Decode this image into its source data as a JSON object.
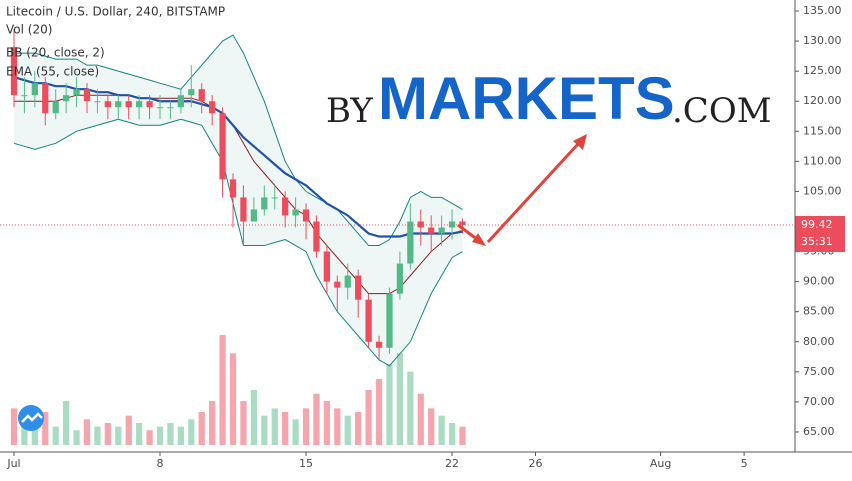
{
  "chart_data": {
    "type": "candlestick",
    "title": "Litecoin / U.S. Dollar, 240, BITSTAMP",
    "indicators": [
      "Vol (20)",
      "BB (20, close, 2)",
      "EMA (55, close)"
    ],
    "x": [
      0,
      0.5,
      1,
      1.5,
      2,
      2.5,
      3,
      3.5,
      4,
      4.5,
      5,
      5.5,
      6,
      6.5,
      7,
      7.5,
      8,
      8.5,
      9,
      9.5,
      10,
      10.5,
      11,
      11.5,
      12,
      12.5,
      13,
      13.5,
      14,
      14.5,
      15,
      15.5,
      16,
      16.5,
      17,
      17.5,
      18,
      18.5,
      19,
      19.5,
      20,
      20.5,
      21,
      21.5
    ],
    "open": [
      129,
      121,
      121,
      123,
      118,
      120,
      121,
      122,
      120,
      120,
      119,
      120,
      119,
      120,
      119,
      119,
      119,
      121,
      122,
      120,
      118,
      107,
      104,
      100,
      102,
      104,
      104,
      101,
      102,
      100,
      95,
      90,
      89,
      91,
      87,
      80,
      79,
      88,
      93,
      100,
      99,
      98,
      99,
      100
    ],
    "high": [
      132,
      124,
      125,
      124,
      122,
      123,
      124,
      123,
      122,
      121,
      121,
      121,
      121,
      121,
      121,
      120,
      122,
      126,
      123,
      121,
      119,
      108,
      106,
      104,
      106,
      106,
      105,
      104,
      103,
      101,
      96,
      91,
      93,
      92,
      88,
      81,
      89,
      95,
      103,
      102,
      101,
      101,
      102,
      100.5
    ],
    "low": [
      119,
      118,
      119,
      116,
      117,
      118,
      119,
      118,
      118,
      117,
      117,
      117,
      117,
      117,
      117,
      117,
      118,
      119,
      118,
      116,
      104,
      99,
      96,
      100,
      101,
      102,
      99,
      99,
      97,
      94,
      88,
      85,
      87,
      84,
      79,
      77,
      78,
      87,
      92,
      96,
      95,
      96,
      97,
      98
    ],
    "close": [
      121,
      121,
      123,
      118,
      120,
      121,
      122,
      120,
      120,
      119,
      120,
      119,
      120,
      119,
      119,
      119,
      121,
      122,
      120,
      118,
      107,
      104,
      100,
      102,
      104,
      104,
      101,
      102,
      100,
      95,
      90,
      89,
      91,
      87,
      80,
      79,
      88,
      93,
      100,
      99,
      98,
      99,
      100,
      99.42
    ],
    "volume": [
      10,
      8,
      6,
      9,
      5,
      12,
      4,
      7,
      5,
      6,
      5,
      8,
      6,
      4,
      5,
      6,
      5,
      7,
      9,
      12,
      30,
      25,
      12,
      15,
      8,
      10,
      9,
      7,
      10,
      14,
      12,
      10,
      8,
      9,
      15,
      18,
      22,
      25,
      20,
      14,
      10,
      8,
      6,
      5
    ],
    "bb_upper": [
      128,
      128,
      128,
      127.5,
      127,
      127,
      127,
      126,
      126,
      125.5,
      125,
      124.5,
      124,
      123.5,
      123,
      122.5,
      122,
      124,
      126,
      128,
      130,
      131,
      128,
      124,
      120,
      115,
      110,
      107,
      105,
      104,
      103,
      102,
      100,
      98,
      96,
      96,
      97,
      100,
      104,
      105,
      104,
      104,
      103,
      102
    ],
    "bb_middle": [
      120,
      120,
      120,
      120,
      120,
      120.5,
      121,
      121,
      121,
      121,
      121,
      121,
      120.5,
      120.5,
      120.5,
      120.5,
      120.5,
      120.5,
      120,
      119,
      118,
      116,
      113,
      110,
      108,
      106,
      104,
      102,
      101,
      98,
      96,
      94,
      92,
      90,
      88,
      88,
      88,
      89,
      91,
      93,
      95,
      96.5,
      98,
      98.5
    ],
    "bb_lower": [
      113,
      112.5,
      112,
      112.5,
      113,
      114,
      115,
      115.5,
      116,
      116.5,
      117,
      116.5,
      116,
      116,
      116,
      116.5,
      117,
      116.5,
      116,
      113,
      110,
      103,
      96,
      96,
      96,
      96.5,
      97,
      96,
      95,
      91,
      88,
      85,
      83,
      81,
      79,
      77,
      76,
      78,
      80,
      84,
      88,
      91,
      94,
      95
    ],
    "ema": [
      124,
      123.5,
      123,
      123,
      122.5,
      122.5,
      122,
      122,
      121.5,
      121.5,
      121,
      121,
      120.5,
      120.5,
      120,
      120,
      120,
      120,
      119.5,
      119,
      118,
      116,
      114,
      112.5,
      111,
      109.5,
      108,
      107,
      106,
      104.5,
      103,
      102,
      101,
      99.5,
      98,
      97.5,
      97.5,
      97.5,
      98,
      98,
      98,
      98,
      98,
      98.3
    ],
    "up_color": "#53b987",
    "down_color": "#eb4d5c",
    "ema_color": "#1e53a6",
    "bb_color": "#138484",
    "mid_color": "#8e1c1c",
    "countdown": "35:31",
    "xlim": [
      -0.67,
      37.44
    ],
    "ylim": [
      61.67,
      136.83
    ],
    "xticks": [
      {
        "value": 0,
        "label": "Jul"
      },
      {
        "value": 7,
        "label": "8"
      },
      {
        "value": 14,
        "label": "15"
      },
      {
        "value": 21,
        "label": "22"
      },
      {
        "value": 25,
        "label": "26"
      },
      {
        "value": 31,
        "label": "Aug"
      },
      {
        "value": 35,
        "label": "5"
      }
    ],
    "yticks": [
      {
        "value": 65,
        "label": "65.00"
      },
      {
        "value": 70,
        "label": "70.00"
      },
      {
        "value": 75,
        "label": "75.00"
      },
      {
        "value": 80,
        "label": "80.00"
      },
      {
        "value": 85,
        "label": "85.00"
      },
      {
        "value": 90,
        "label": "90.00"
      },
      {
        "value": 95,
        "label": "95.00"
      },
      {
        "value": 100,
        "label": "100.00"
      },
      {
        "value": 105,
        "label": "105.00"
      },
      {
        "value": 110,
        "label": "110.00"
      },
      {
        "value": 115,
        "label": "115.00"
      },
      {
        "value": 120,
        "label": "120.00"
      },
      {
        "value": 125,
        "label": "125.00"
      },
      {
        "value": 130,
        "label": "130.00"
      },
      {
        "value": 135,
        "label": "135.00"
      }
    ]
  },
  "watermark": {
    "prefix": "BY",
    "brand": "MARKETS",
    "suffix": ".COM"
  }
}
